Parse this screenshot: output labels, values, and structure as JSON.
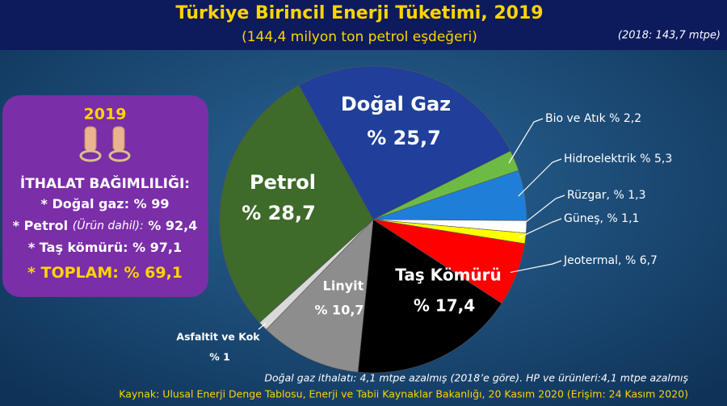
{
  "chart_data": {
    "type": "pie",
    "title": "Türkiye Birincil Enerji Tüketimi, 2019",
    "subtitle": "(144,4 milyon ton petrol eşdeğeri)",
    "note": "(2018: 143,7 mtpe)",
    "categories": [
      "Doğal Gaz",
      "Bio ve Atık",
      "Hidroelektrik",
      "Rüzgar,",
      "Güneş,",
      "Jeotermal,",
      "Taş Kömürü",
      "Linyit",
      "Asfaltit ve Kok",
      "Petrol"
    ],
    "values": [
      25.7,
      2.2,
      5.3,
      1.3,
      1.1,
      6.7,
      17.4,
      10.7,
      1,
      28.7
    ],
    "value_labels": [
      "% 25,7",
      "% 2,2",
      "% 5,3",
      "% 1,3",
      "% 1,1",
      "% 6,7",
      "% 17,4",
      "% 10,7",
      "% 1",
      "% 28,7"
    ],
    "colors": [
      "#1f3f9a",
      "#6dbb45",
      "#1f7fd8",
      "#ffffff",
      "#ffff00",
      "#ff0000",
      "#000000",
      "#8d8d8d",
      "#d9d9d9",
      "#3e6a2a"
    ]
  },
  "panel": {
    "year": "2019",
    "heading": "İTHALAT BAĞIMLILIĞI:",
    "items": [
      {
        "label": "* Doğal gaz:",
        "value": "% 99"
      },
      {
        "label": "* Petrol",
        "note": "(Ürün dahil):",
        "value": "% 92,4"
      },
      {
        "label": "* Taş kömürü:",
        "value": "% 97,1"
      },
      {
        "label": "* TOPLAM:",
        "value": "% 69,1"
      }
    ]
  },
  "footer": {
    "note": "Doğal gaz ithalatı: 4,1 mtpe azalmış (2018’e göre). HP ve ürünleri:4,1 mtpe azalmış",
    "source": "Kaynak: Ulusal Enerji Denge Tablosu, Enerji ve Tabii Kaynaklar Bakanlığı, 20 Kasım 2020 (Erişim: 24 Kasım 2020)"
  }
}
